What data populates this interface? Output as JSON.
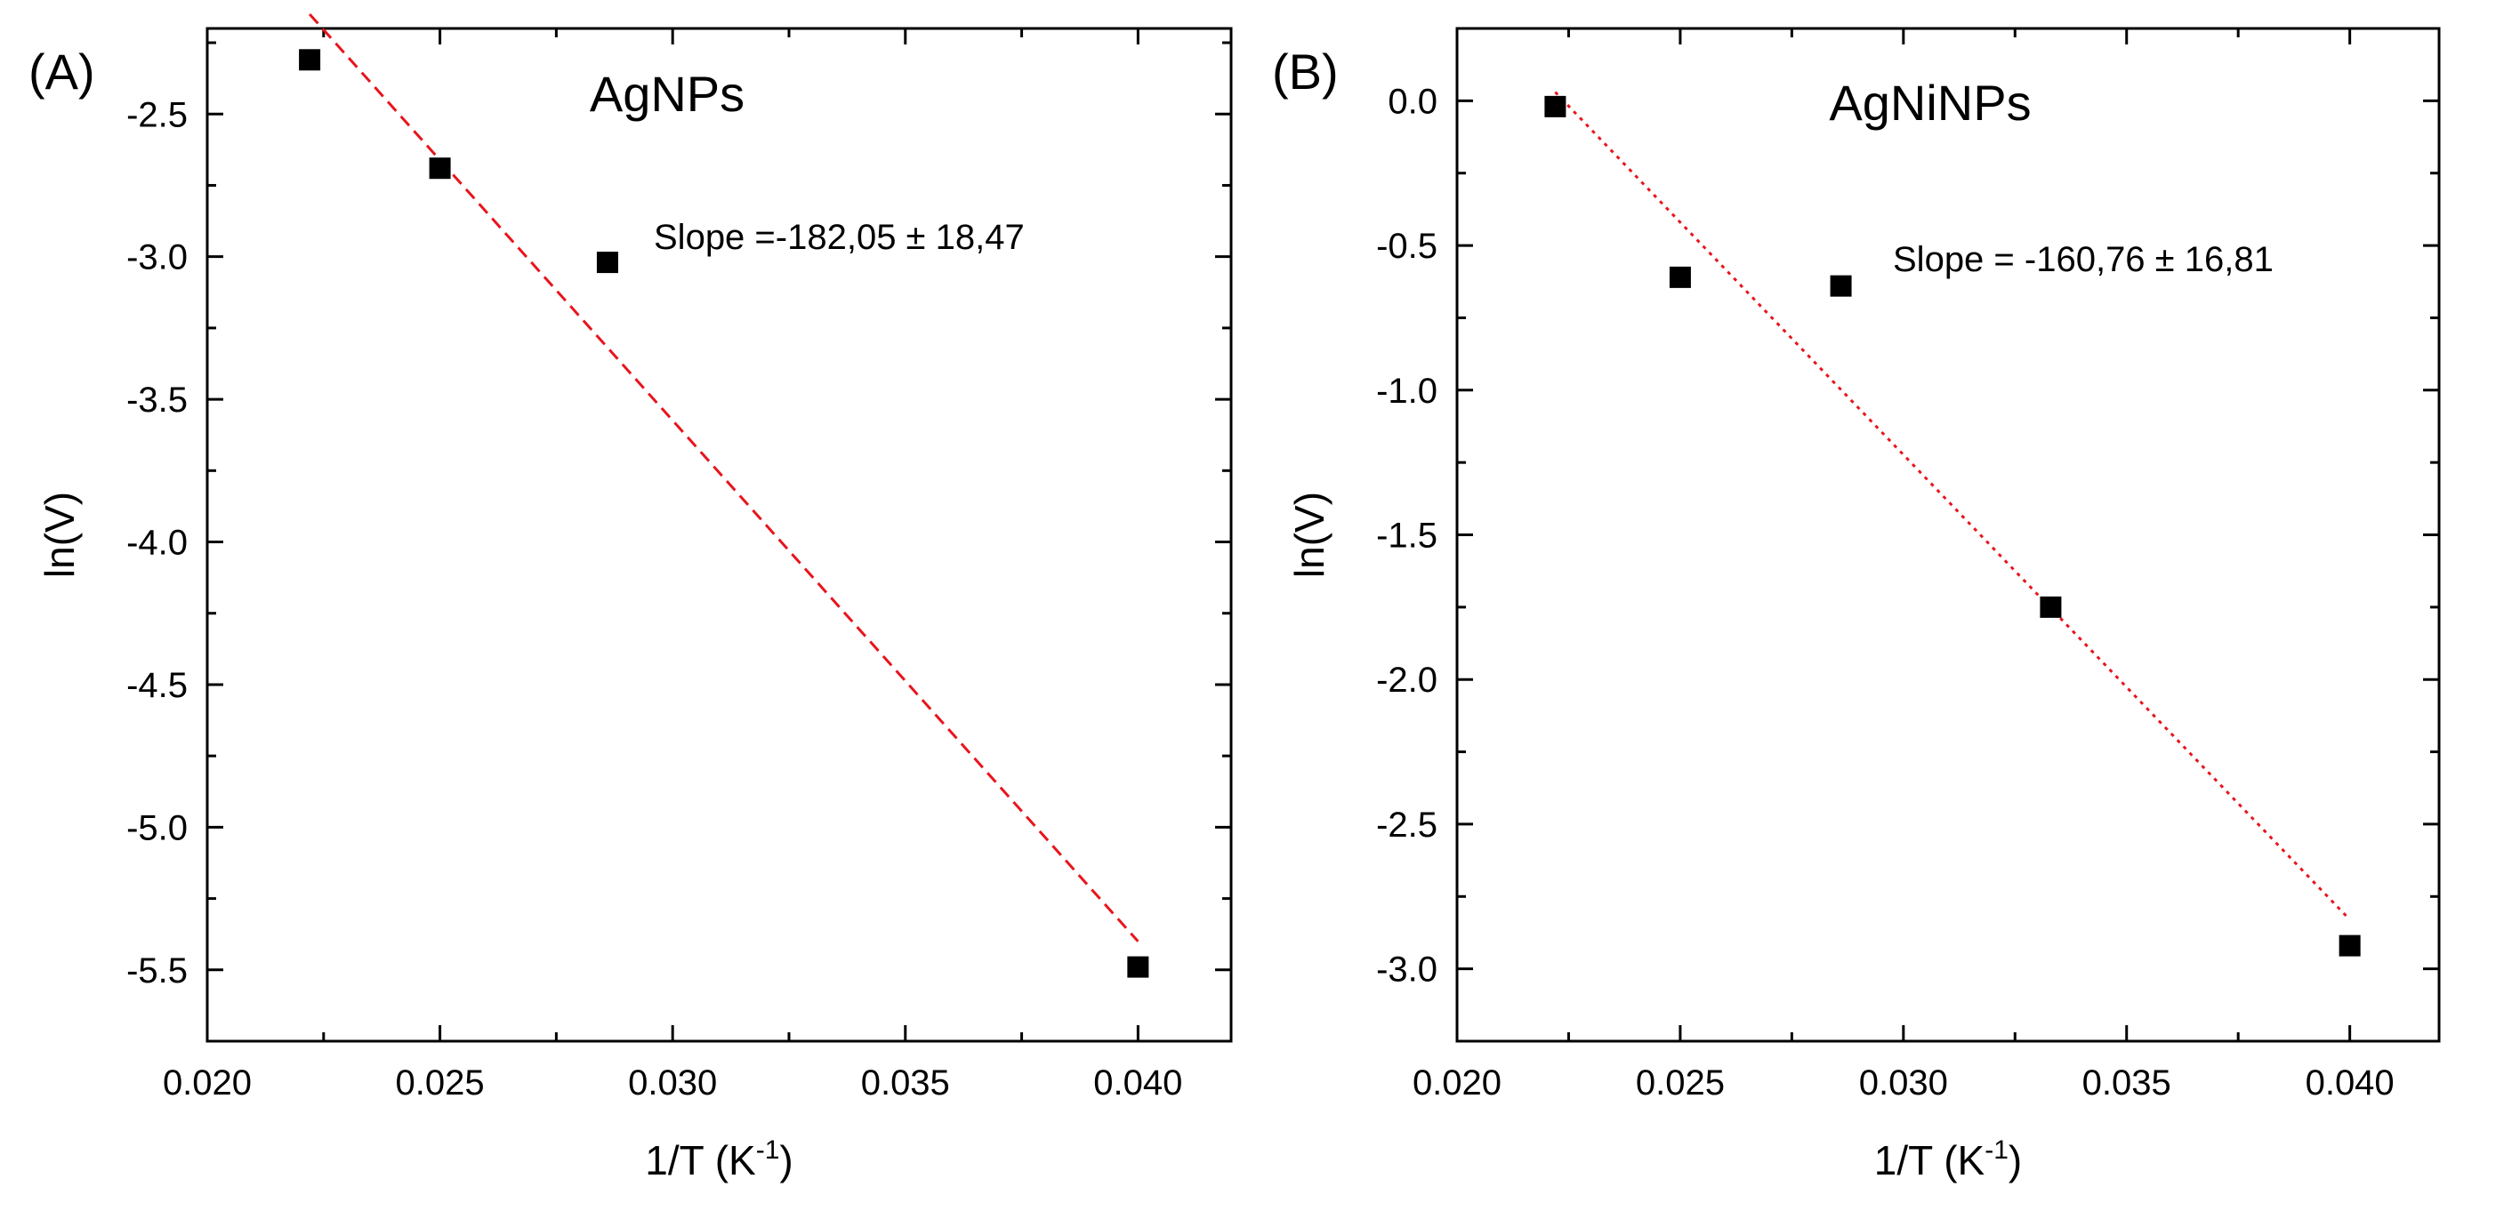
{
  "chart_data": [
    {
      "type": "scatter",
      "panel_label": "(A)",
      "title": "AgNPs",
      "xlabel": "1/T (K",
      "xlabel_sup": "-1",
      "xlabel_end": ")",
      "ylabel": "ln(V)",
      "xlim": [
        0.02,
        0.042
      ],
      "ylim": [
        -5.75,
        -2.2
      ],
      "xticks": [
        0.02,
        0.025,
        0.03,
        0.035,
        0.04
      ],
      "xtick_labels": [
        "0.020",
        "0.025",
        "0.030",
        "0.035",
        "0.040"
      ],
      "yticks": [
        -2.5,
        -3.0,
        -3.5,
        -4.0,
        -4.5,
        -5.0,
        -5.5
      ],
      "ytick_labels": [
        "-2.5",
        "-3.0",
        "-3.5",
        "-4.0",
        "-4.5",
        "-5.0",
        "-5.5"
      ],
      "points": {
        "x": [
          0.0222,
          0.025,
          0.0286,
          0.04
        ],
        "y": [
          -2.31,
          -2.69,
          -3.02,
          -5.49
        ]
      },
      "fit": {
        "x": [
          0.0222,
          0.04
        ],
        "y": [
          -2.15,
          -5.4
        ],
        "style": "dashed",
        "color": "#e8141c"
      },
      "annotation": "Slope =-182,05 ± 18,47",
      "marker_color": "#000000"
    },
    {
      "type": "scatter",
      "panel_label": "(B)",
      "title": "AgNiNPs",
      "xlabel": "1/T (K",
      "xlabel_sup": "-1",
      "xlabel_end": ")",
      "ylabel": "ln(V)",
      "xlim": [
        0.02,
        0.042
      ],
      "ylim": [
        -3.25,
        0.25
      ],
      "xticks": [
        0.02,
        0.025,
        0.03,
        0.035,
        0.04
      ],
      "xtick_labels": [
        "0.020",
        "0.025",
        "0.030",
        "0.035",
        "0.040"
      ],
      "yticks": [
        0.0,
        -0.5,
        -1.0,
        -1.5,
        -2.0,
        -2.5,
        -3.0
      ],
      "ytick_labels": [
        "0.0",
        "-0.5",
        "-1.0",
        "-1.5",
        "-2.0",
        "-2.5",
        "-3.0"
      ],
      "points": {
        "x": [
          0.0222,
          0.025,
          0.0286,
          0.0333,
          0.04
        ],
        "y": [
          -0.02,
          -0.61,
          -0.64,
          -1.75,
          -2.92
        ]
      },
      "fit": {
        "x": [
          0.0222,
          0.04
        ],
        "y": [
          0.03,
          -2.83
        ],
        "style": "dotted",
        "color": "#e8141c"
      },
      "annotation": "Slope = -160,76 ± 16,81",
      "marker_color": "#000000"
    }
  ]
}
